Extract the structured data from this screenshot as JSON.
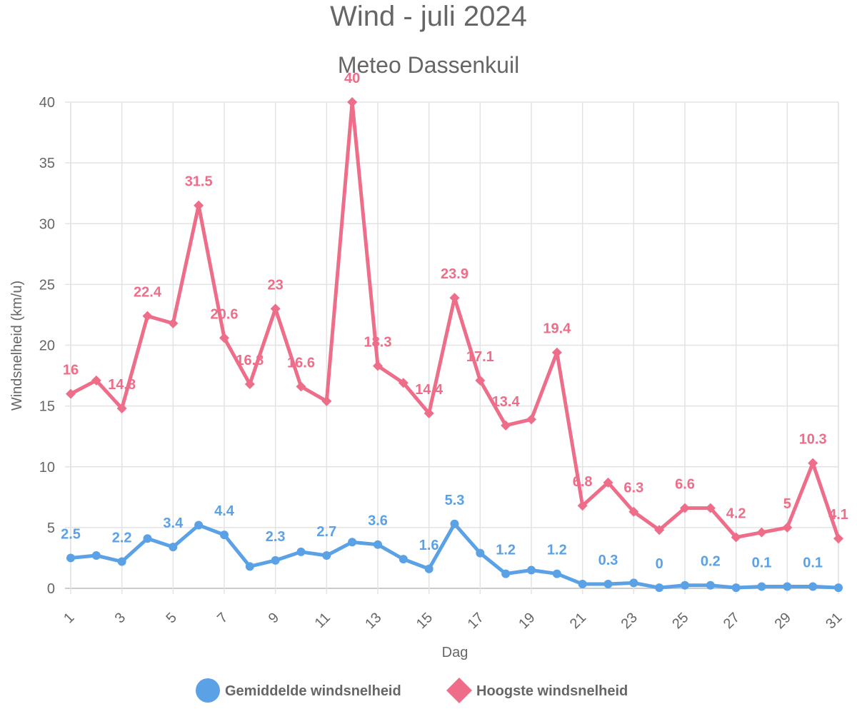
{
  "chart_data": {
    "type": "line",
    "title": "Wind - juli 2024",
    "subtitle": "Meteo Dassenkuil",
    "xlabel": "Dag",
    "ylabel": "Windsnelheid (km/u)",
    "ylim": [
      0,
      40
    ],
    "yticks": [
      "0",
      "5",
      "10",
      "15",
      "20",
      "25",
      "30",
      "35",
      "40"
    ],
    "x": [
      1,
      2,
      3,
      4,
      5,
      6,
      7,
      8,
      9,
      10,
      11,
      12,
      13,
      14,
      15,
      16,
      17,
      18,
      19,
      20,
      21,
      22,
      23,
      24,
      25,
      26,
      27,
      28,
      29,
      30,
      31
    ],
    "xtick_labels": [
      "1",
      "3",
      "5",
      "7",
      "9",
      "11",
      "13",
      "15",
      "17",
      "19",
      "21",
      "23",
      "25",
      "27",
      "29",
      "31"
    ],
    "grid": true,
    "legend_position": "bottom",
    "series": [
      {
        "name": "Gemiddelde windsnelheid",
        "color": "#5ba1e6",
        "marker": "circle",
        "values": [
          2.5,
          2.7,
          2.2,
          4.1,
          3.4,
          5.2,
          4.4,
          1.8,
          2.3,
          3.0,
          2.7,
          3.8,
          3.6,
          2.4,
          1.6,
          5.3,
          2.9,
          1.2,
          1.5,
          1.2,
          0.35,
          0.35,
          0.45,
          0.05,
          0.25,
          0.25,
          0.05,
          0.15,
          0.15,
          0.15,
          0.05
        ],
        "data_labels": [
          {
            "day": 1,
            "text": "2.5"
          },
          {
            "day": 3,
            "text": "2.2"
          },
          {
            "day": 5,
            "text": "3.4"
          },
          {
            "day": 7,
            "text": "4.4"
          },
          {
            "day": 9,
            "text": "2.3"
          },
          {
            "day": 11,
            "text": "2.7"
          },
          {
            "day": 13,
            "text": "3.6"
          },
          {
            "day": 15,
            "text": "1.6"
          },
          {
            "day": 16,
            "text": "5.3"
          },
          {
            "day": 18,
            "text": "1.2"
          },
          {
            "day": 20,
            "text": "1.2"
          },
          {
            "day": 22,
            "text": "0.3"
          },
          {
            "day": 24,
            "text": "0"
          },
          {
            "day": 26,
            "text": "0.2"
          },
          {
            "day": 28,
            "text": "0.1"
          },
          {
            "day": 30,
            "text": "0.1"
          }
        ]
      },
      {
        "name": "Hoogste windsnelheid",
        "color": "#ee6d89",
        "marker": "diamond",
        "values": [
          16,
          17.1,
          14.8,
          22.4,
          21.8,
          31.5,
          20.6,
          16.8,
          23,
          16.6,
          15.4,
          40,
          18.3,
          16.9,
          14.4,
          23.9,
          17.1,
          13.4,
          13.9,
          19.4,
          6.8,
          8.7,
          6.3,
          4.8,
          6.6,
          6.6,
          4.2,
          4.6,
          5,
          10.3,
          4.1
        ],
        "data_labels": [
          {
            "day": 1,
            "text": "16"
          },
          {
            "day": 3,
            "text": "14.8"
          },
          {
            "day": 4,
            "text": "22.4"
          },
          {
            "day": 6,
            "text": "31.5"
          },
          {
            "day": 7,
            "text": "20.6"
          },
          {
            "day": 8,
            "text": "16.8"
          },
          {
            "day": 9,
            "text": "23"
          },
          {
            "day": 10,
            "text": "16.6"
          },
          {
            "day": 12,
            "text": "40"
          },
          {
            "day": 13,
            "text": "18.3"
          },
          {
            "day": 15,
            "text": "14.4"
          },
          {
            "day": 16,
            "text": "23.9"
          },
          {
            "day": 17,
            "text": "17.1"
          },
          {
            "day": 18,
            "text": "13.4"
          },
          {
            "day": 20,
            "text": "19.4"
          },
          {
            "day": 21,
            "text": "6.8"
          },
          {
            "day": 23,
            "text": "6.3"
          },
          {
            "day": 25,
            "text": "6.6"
          },
          {
            "day": 27,
            "text": "4.2"
          },
          {
            "day": 29,
            "text": "5"
          },
          {
            "day": 30,
            "text": "10.3"
          },
          {
            "day": 31,
            "text": "4.1"
          }
        ]
      }
    ]
  }
}
